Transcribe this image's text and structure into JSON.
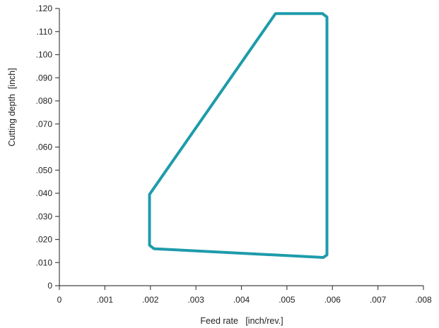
{
  "chart_data": {
    "type": "line",
    "title": "",
    "xlabel": "Feed rate   [inch/rev.]",
    "ylabel": "Cutting depth  [inch]",
    "xlim": [
      0,
      0.008
    ],
    "ylim": [
      0,
      0.12
    ],
    "x_ticks": [
      0,
      0.001,
      0.002,
      0.003,
      0.004,
      0.005,
      0.006,
      0.007,
      0.008
    ],
    "x_tick_labels": [
      "0",
      ".001",
      ".002",
      ".003",
      ".004",
      ".005",
      ".006",
      ".007",
      ".008"
    ],
    "y_ticks": [
      0,
      0.01,
      0.02,
      0.03,
      0.04,
      0.05,
      0.06,
      0.07,
      0.08,
      0.09,
      0.1,
      0.11,
      0.12
    ],
    "y_tick_labels": [
      "0",
      ".010",
      ".020",
      ".030",
      ".040",
      ".050",
      ".060",
      ".070",
      ".080",
      ".090",
      ".100",
      ".110",
      ".120"
    ],
    "grid": false,
    "legend": "none",
    "series": [
      {
        "closed": true,
        "color": "#1e9bab",
        "points": [
          {
            "x": 0.00198,
            "y": 0.0395
          },
          {
            "x": 0.00475,
            "y": 0.1178
          },
          {
            "x": 0.00578,
            "y": 0.1178
          },
          {
            "x": 0.00588,
            "y": 0.1163
          },
          {
            "x": 0.00588,
            "y": 0.0133
          },
          {
            "x": 0.0058,
            "y": 0.0122
          },
          {
            "x": 0.00208,
            "y": 0.016
          },
          {
            "x": 0.00198,
            "y": 0.0175
          }
        ]
      }
    ]
  }
}
